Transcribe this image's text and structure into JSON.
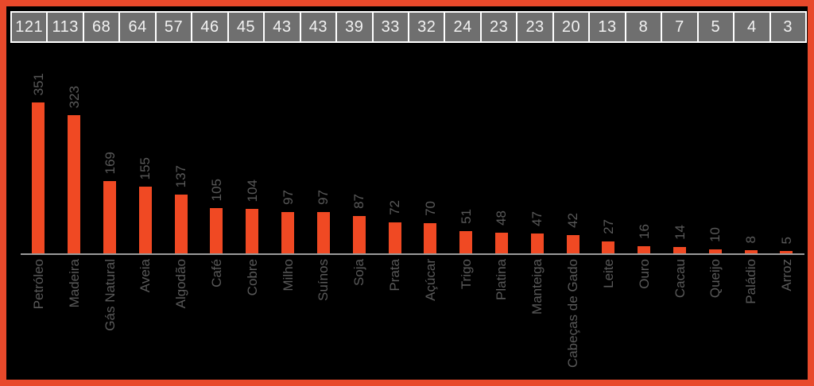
{
  "chart_data": {
    "type": "bar",
    "title": "",
    "xlabel": "",
    "ylabel": "",
    "categories": [
      "Petróleo",
      "Madeira",
      "Gás Natural",
      "Aveia",
      "Algodão",
      "Café",
      "Cobre",
      "Milho",
      "Suínos",
      "Soja",
      "Prata",
      "Açúcar",
      "Trigo",
      "Platina",
      "Manteiga",
      "Cabeças de Gado",
      "Leite",
      "Ouro",
      "Cacau",
      "Queijo",
      "Paládio",
      "Arroz"
    ],
    "series": [
      {
        "name": "bar-values",
        "values": [
          351,
          323,
          169,
          155,
          137,
          105,
          104,
          97,
          97,
          87,
          72,
          70,
          51,
          48,
          47,
          42,
          27,
          16,
          14,
          10,
          8,
          5
        ]
      },
      {
        "name": "header-strip-values",
        "values": [
          121,
          113,
          68,
          64,
          57,
          46,
          45,
          43,
          43,
          39,
          33,
          32,
          24,
          23,
          23,
          20,
          13,
          8,
          7,
          5,
          4,
          3
        ]
      }
    ],
    "ylim": [
      0,
      470
    ],
    "grid": false,
    "legend": false,
    "value_labels_rotation_deg": 90,
    "category_labels_rotation_deg": 90
  },
  "colors": {
    "frame_border": "#E8492B",
    "background": "#000000",
    "bar": "#F04923",
    "axis_line": "#9A9A9A",
    "value_label": "#595959",
    "category_label": "#595959",
    "header_cell_bg": "#6F6F6F",
    "header_cell_border": "#FFFFFF",
    "header_text": "#F2F2F2"
  }
}
